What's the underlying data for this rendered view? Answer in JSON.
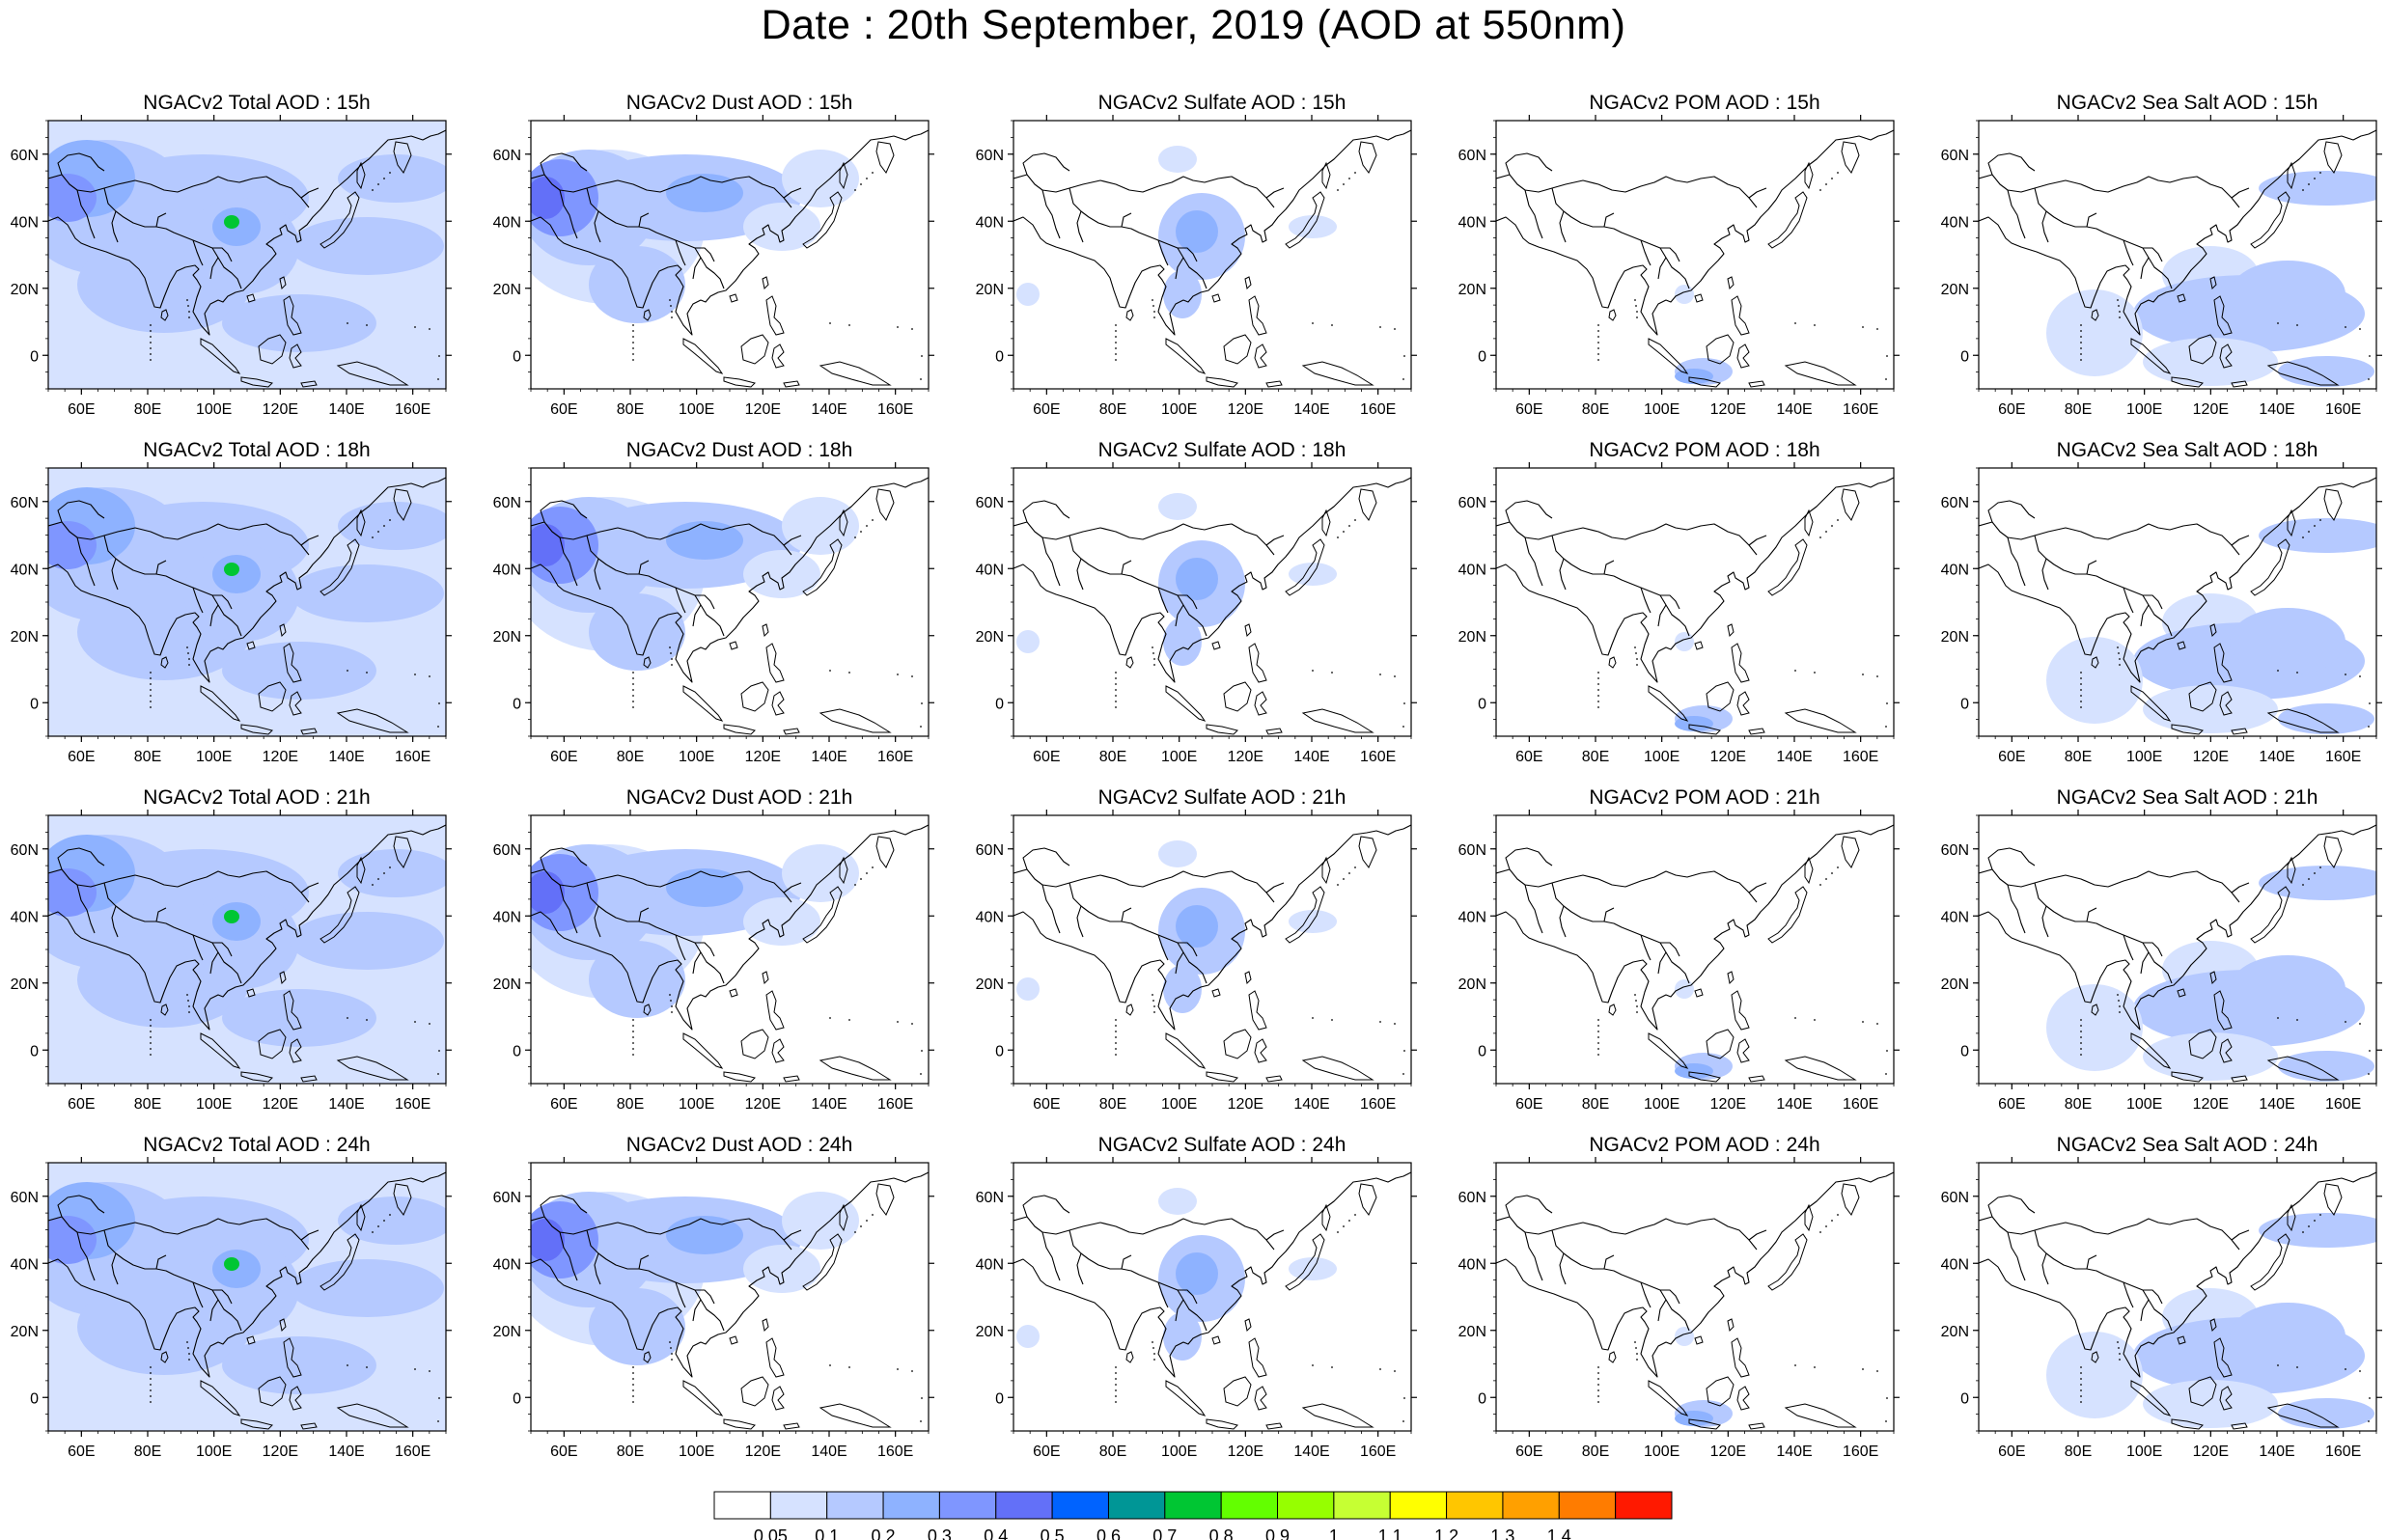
{
  "title": "Date : 20th September, 2019 (AOD at 550nm)",
  "rows": [
    "15h",
    "18h",
    "21h",
    "24h"
  ],
  "panel_titles": [
    [
      "NGACv2 Total AOD : 15h",
      "NGACv2 Dust AOD : 15h",
      "NGACv2 Sulfate AOD : 15h",
      "NGACv2 POM AOD : 15h",
      "NGACv2 Sea Salt AOD : 15h"
    ],
    [
      "NGACv2 Total AOD : 18h",
      "NGACv2 Dust AOD : 18h",
      "NGACv2 Sulfate AOD : 18h",
      "NGACv2 POM AOD : 18h",
      "NGACv2 Sea Salt AOD : 18h"
    ],
    [
      "NGACv2 Total AOD : 21h",
      "NGACv2 Dust AOD : 21h",
      "NGACv2 Sulfate AOD : 21h",
      "NGACv2 POM AOD : 21h",
      "NGACv2 Sea Salt AOD : 21h"
    ],
    [
      "NGACv2 Total AOD : 24h",
      "NGACv2 Dust AOD : 24h",
      "NGACv2 Sulfate AOD : 24h",
      "NGACv2 POM AOD : 24h",
      "NGACv2 Sea Salt  AOD : 24h"
    ]
  ],
  "map": {
    "lon_range": [
      50,
      170
    ],
    "lat_range": [
      -10,
      70
    ],
    "lon_ticks": [
      "60E",
      "80E",
      "100E",
      "120E",
      "140E",
      "160E"
    ],
    "lon_tick_values": [
      60,
      80,
      100,
      120,
      140,
      160
    ],
    "lat_ticks": [
      "0",
      "20N",
      "40N",
      "60N"
    ],
    "lat_tick_values": [
      0,
      20,
      40,
      60
    ]
  },
  "colorbar": {
    "labels": [
      "0.05",
      "0.1",
      "0.2",
      "0.3",
      "0.4",
      "0.5",
      "0.6",
      "0.7",
      "0.8",
      "0.9",
      "1",
      "1.1",
      "1.2",
      "1.3",
      "1.4"
    ],
    "colors": [
      "#ffffff",
      "#d6e2ff",
      "#b5c9ff",
      "#8eb2ff",
      "#7f96ff",
      "#6370f8",
      "#0063ff",
      "#009696",
      "#00c633",
      "#63ff00",
      "#96ff00",
      "#c6ff33",
      "#ffff00",
      "#ffc600",
      "#ffa000",
      "#ff7c00",
      "#ff1900"
    ]
  },
  "colors": {
    "outline": "#000000",
    "background": "#ffffff"
  }
}
